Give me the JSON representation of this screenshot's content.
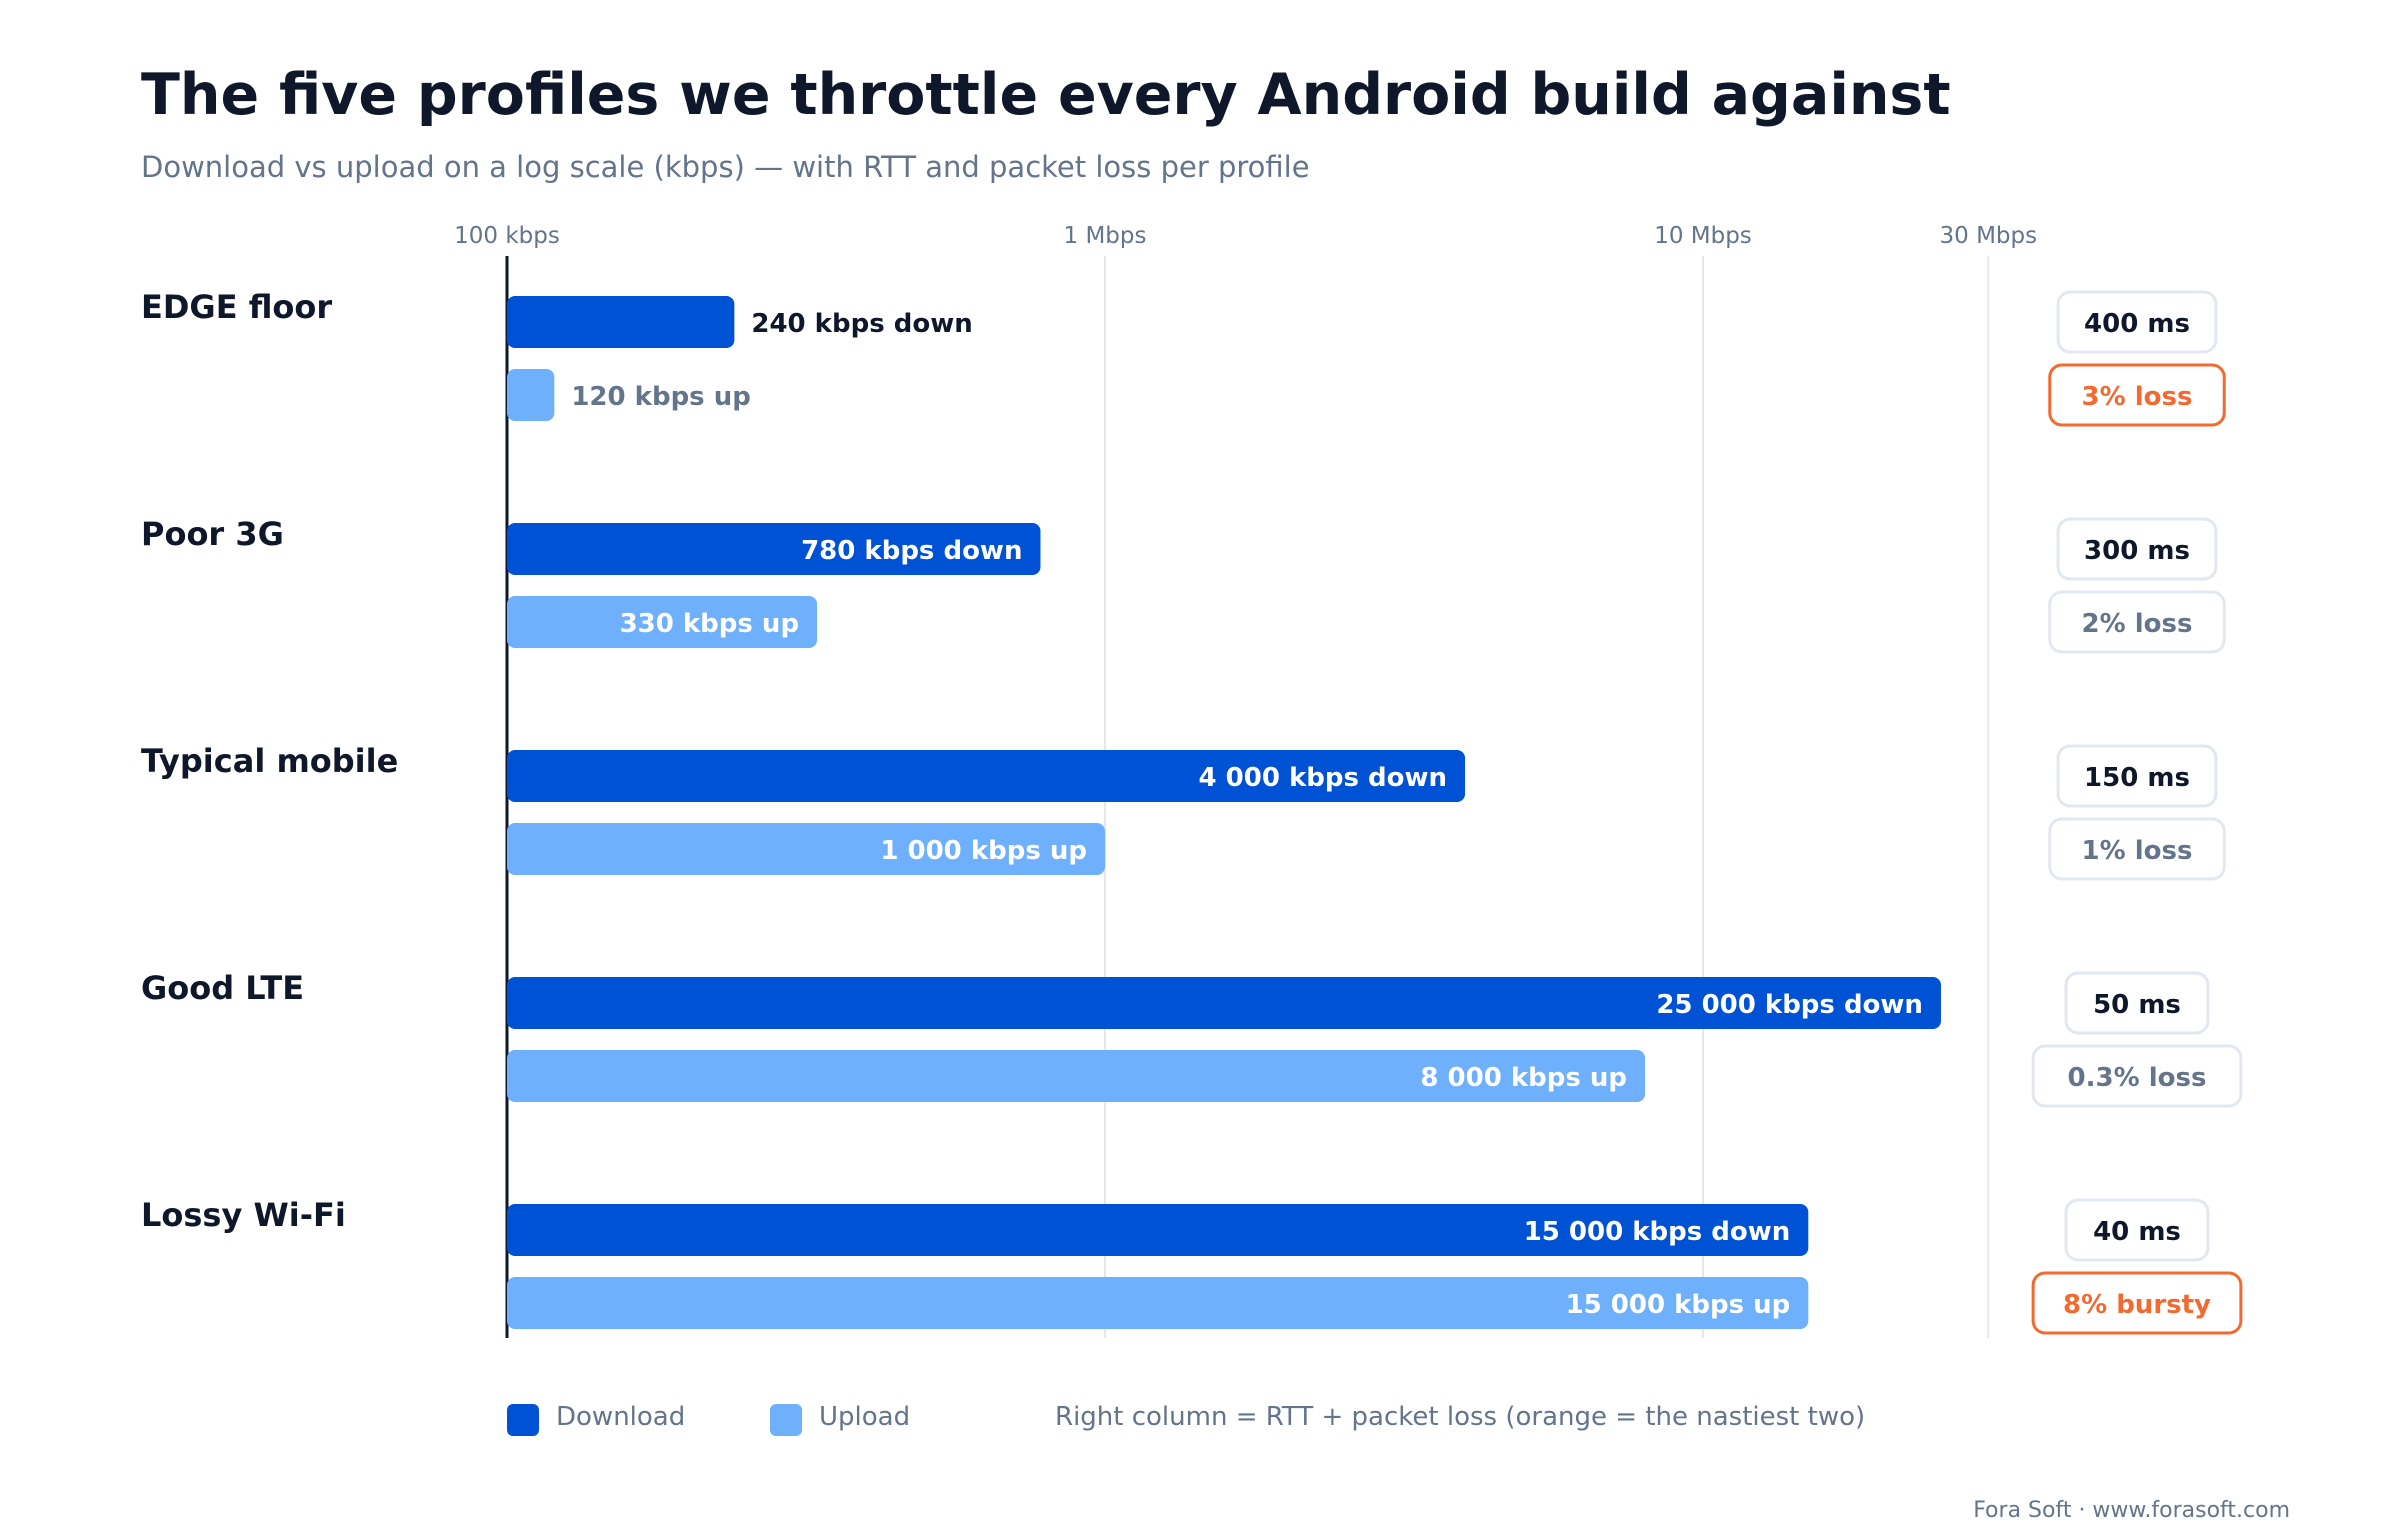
{
  "chart_data": {
    "type": "bar",
    "title": "The five profiles we throttle every Android build against",
    "subtitle": "Download vs upload on a log scale (kbps) — with RTT and packet loss per profile",
    "x_scale": "log",
    "x_unit": "kbps",
    "xlim": [
      100,
      30000
    ],
    "x_ticks": [
      {
        "value": 100,
        "label": "100 kbps"
      },
      {
        "value": 1000,
        "label": "1 Mbps"
      },
      {
        "value": 10000,
        "label": "10 Mbps"
      },
      {
        "value": 30000,
        "label": "30 Mbps"
      }
    ],
    "categories": [
      "EDGE floor",
      "Poor 3G",
      "Typical mobile",
      "Good LTE",
      "Lossy Wi-Fi"
    ],
    "series": [
      {
        "name": "Download",
        "color": "#0052d4",
        "values": [
          240,
          780,
          4000,
          25000,
          15000
        ],
        "labels": [
          "240 kbps down",
          "780 kbps down",
          "4 000 kbps down",
          "25 000 kbps down",
          "15 000 kbps down"
        ]
      },
      {
        "name": "Upload",
        "color": "#6eb0fb",
        "values": [
          120,
          330,
          1000,
          8000,
          15000
        ],
        "labels": [
          "120 kbps up",
          "330 kbps up",
          "1 000 kbps up",
          "8 000 kbps up",
          "15 000 kbps up"
        ]
      }
    ],
    "rtt": [
      "400 ms",
      "300 ms",
      "150 ms",
      "50 ms",
      "40 ms"
    ],
    "loss": [
      "3% loss",
      "2% loss",
      "1% loss",
      "0.3% loss",
      "8% bursty"
    ],
    "loss_highlight": [
      true,
      false,
      false,
      false,
      true
    ],
    "grid": true,
    "legend_position": "bottom-left",
    "legend_note": "Right column = RTT + packet loss (orange = the nastiest two)"
  },
  "colors": {
    "download": "#0052d4",
    "upload": "#6eb0fb",
    "highlight": "#f26a30",
    "text_dark": "#0f172a",
    "text_muted": "#64748b",
    "grid": "#e5e7eb",
    "pill_border": "#e2e8f0"
  },
  "footer": "Fora Soft · www.forasoft.com"
}
